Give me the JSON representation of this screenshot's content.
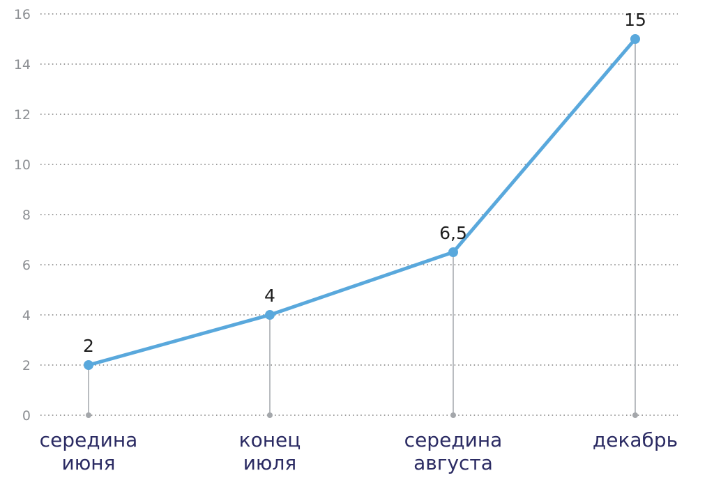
{
  "chart_data": {
    "type": "line",
    "title": "",
    "xlabel": "",
    "ylabel": "",
    "categories": [
      [
        "середина",
        "июня"
      ],
      [
        "конец",
        "июля"
      ],
      [
        "середина",
        "августа"
      ],
      [
        "декабрь"
      ]
    ],
    "values": [
      2,
      4,
      6.5,
      15
    ],
    "data_labels": [
      "2",
      "4",
      "6,5",
      "15"
    ],
    "ylim": [
      0,
      16
    ],
    "yticks": [
      0,
      2,
      4,
      6,
      8,
      10,
      12,
      14,
      16
    ],
    "grid": true,
    "colors": {
      "line": "#59a8dc",
      "grid": "#7d7d7d",
      "axis_text": "#8c8f93",
      "category_text": "#2b2b63",
      "value_text": "#1d1d1d"
    }
  }
}
